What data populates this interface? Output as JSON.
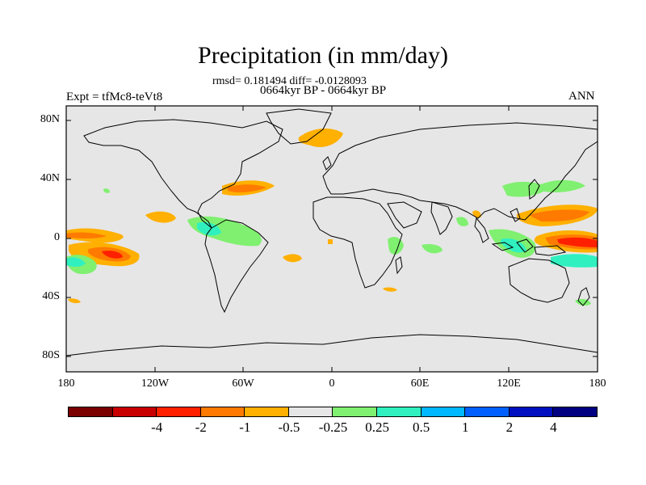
{
  "title": "Precipitation (in mm/day)",
  "stats": "rmsd= 0.181494 diff= -0.0128093",
  "period": "0664kyr BP - 0664kyr BP",
  "expt": "Expt = tfMc8-teVt8",
  "season": "ANN",
  "lat_labels": [
    "80N",
    "40N",
    "0",
    "40S",
    "80S"
  ],
  "lon_labels": [
    "180",
    "120W",
    "60W",
    "0",
    "60E",
    "120E",
    "180"
  ],
  "colorbar": {
    "colors": [
      "#7a0000",
      "#c80000",
      "#ff2000",
      "#ff7a00",
      "#ffb000",
      "#e6e6e6",
      "#80f070",
      "#30f0c0",
      "#00b8ff",
      "#0060ff",
      "#0010c0",
      "#000080"
    ],
    "labels": [
      "-4",
      "-2",
      "-1",
      "-0.5",
      "-0.25",
      "0.25",
      "0.5",
      "1",
      "2",
      "4"
    ]
  },
  "colors": {
    "ocean": "#e6e6e6",
    "coast": "#000000"
  }
}
